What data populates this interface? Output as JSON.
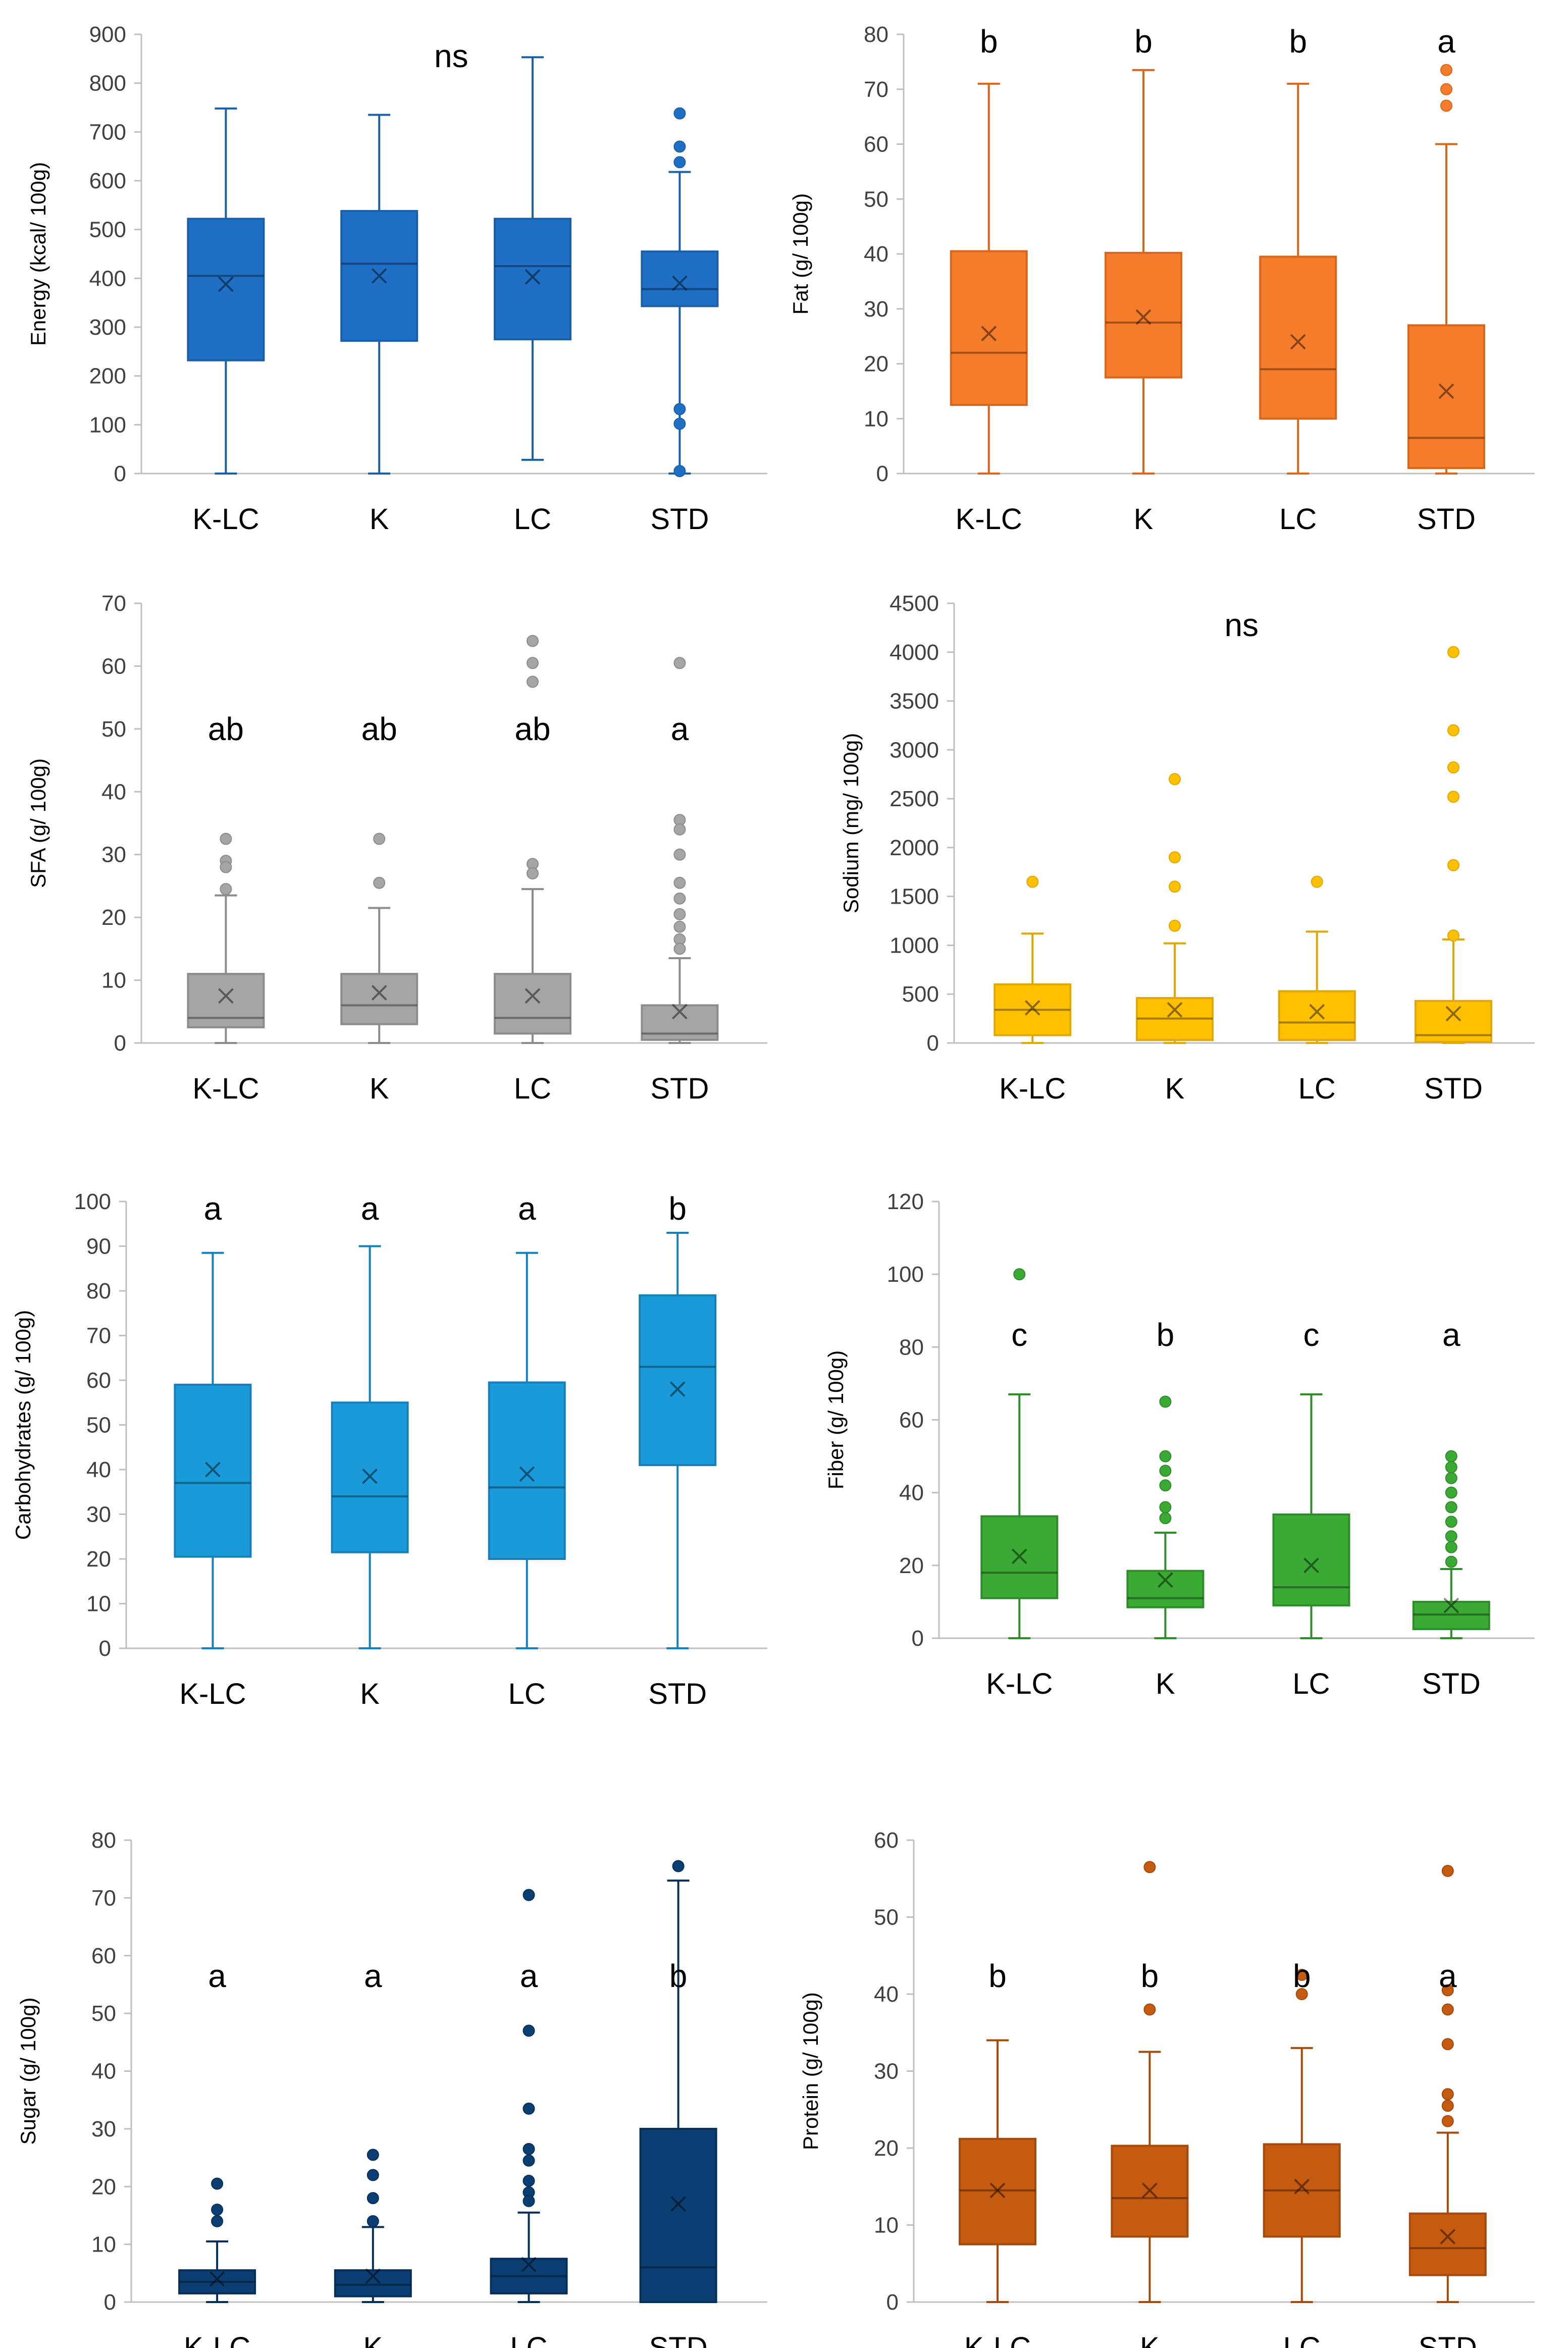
{
  "chart_data": [
    {
      "id": "energy",
      "type": "box",
      "ylabel": "Energy (kcal/ 100g)",
      "ylim": [
        0,
        900
      ],
      "yticks": [
        0,
        100,
        200,
        300,
        400,
        500,
        600,
        700,
        800,
        900
      ],
      "color": "#1f6fc5",
      "stroke": "#1b5fa8",
      "groups": [
        {
          "category": "K-LC",
          "min": 0,
          "q1": 232,
          "median": 405,
          "q3": 522,
          "max": 748,
          "mean": 388,
          "outliers": [],
          "letter": ""
        },
        {
          "category": "K",
          "min": 0,
          "q1": 272,
          "median": 430,
          "q3": 538,
          "max": 735,
          "mean": 405,
          "outliers": [],
          "letter": ""
        },
        {
          "category": "LC",
          "min": 28,
          "q1": 275,
          "median": 425,
          "q3": 522,
          "max": 853,
          "mean": 403,
          "outliers": [],
          "letter": ""
        },
        {
          "category": "STD",
          "min": 0,
          "q1": 343,
          "median": 378,
          "q3": 455,
          "max": 618,
          "mean": 390,
          "outliers": [
            738,
            670,
            638,
            132,
            102,
            5
          ],
          "letter": ""
        }
      ],
      "annotation": "ns"
    },
    {
      "id": "fat",
      "type": "box",
      "ylabel": "Fat (g/ 100g)",
      "ylim": [
        0,
        80
      ],
      "yticks": [
        0,
        10,
        20,
        30,
        40,
        50,
        60,
        70,
        80
      ],
      "color": "#f57c2a",
      "stroke": "#d9661a",
      "groups": [
        {
          "category": "K-LC",
          "min": 0,
          "q1": 12.5,
          "median": 22,
          "q3": 40.5,
          "max": 71,
          "mean": 25.5,
          "outliers": [],
          "letter": "b"
        },
        {
          "category": "K",
          "min": 0,
          "q1": 17.5,
          "median": 27.5,
          "q3": 40.2,
          "max": 73.5,
          "mean": 28.5,
          "outliers": [],
          "letter": "b"
        },
        {
          "category": "LC",
          "min": 0,
          "q1": 10,
          "median": 19,
          "q3": 39.5,
          "max": 71,
          "mean": 24,
          "outliers": [],
          "letter": "b"
        },
        {
          "category": "STD",
          "min": 0,
          "q1": 1,
          "median": 6.5,
          "q3": 27,
          "max": 60,
          "mean": 15,
          "outliers": [
            73.5,
            70,
            67
          ],
          "letter": "a"
        }
      ],
      "annotation": ""
    },
    {
      "id": "sfa",
      "type": "box",
      "ylabel": "SFA (g/ 100g)",
      "ylim": [
        0,
        70
      ],
      "yticks": [
        0,
        10,
        20,
        30,
        40,
        50,
        60,
        70
      ],
      "color": "#a5a5a5",
      "stroke": "#8c8c8c",
      "groups": [
        {
          "category": "K-LC",
          "min": 0,
          "q1": 2.5,
          "median": 4,
          "q3": 11,
          "max": 23.5,
          "mean": 7.5,
          "outliers": [
            32.5,
            29,
            28,
            24.5
          ],
          "letter": "ab"
        },
        {
          "category": "K",
          "min": 0,
          "q1": 3,
          "median": 6,
          "q3": 11,
          "max": 21.5,
          "mean": 8,
          "outliers": [
            32.5,
            25.5
          ],
          "letter": "ab"
        },
        {
          "category": "LC",
          "min": 0,
          "q1": 1.5,
          "median": 4,
          "q3": 11,
          "max": 24.5,
          "mean": 7.5,
          "outliers": [
            64,
            60.5,
            57.5,
            28.5,
            27
          ],
          "letter": "ab"
        },
        {
          "category": "STD",
          "min": 0,
          "q1": 0.5,
          "median": 1.5,
          "q3": 6,
          "max": 13.5,
          "mean": 5,
          "outliers": [
            60.5,
            35.5,
            34,
            30,
            25.5,
            23,
            20.5,
            18.5,
            16.5,
            15
          ],
          "letter": "a"
        }
      ],
      "annotation": ""
    },
    {
      "id": "sodium",
      "type": "box",
      "ylabel": "Sodium (mg/ 100g)",
      "ylim": [
        0,
        4500
      ],
      "yticks": [
        0,
        500,
        1000,
        1500,
        2000,
        2500,
        3000,
        3500,
        4000,
        4500
      ],
      "color": "#ffc000",
      "stroke": "#e0a800",
      "groups": [
        {
          "category": "K-LC",
          "min": 0,
          "q1": 80,
          "median": 340,
          "q3": 600,
          "max": 1120,
          "mean": 360,
          "outliers": [
            1650
          ],
          "letter": ""
        },
        {
          "category": "K",
          "min": 0,
          "q1": 30,
          "median": 250,
          "q3": 460,
          "max": 1020,
          "mean": 340,
          "outliers": [
            2700,
            1900,
            1600,
            1200
          ],
          "letter": ""
        },
        {
          "category": "LC",
          "min": 0,
          "q1": 30,
          "median": 210,
          "q3": 530,
          "max": 1140,
          "mean": 320,
          "outliers": [
            1650
          ],
          "letter": ""
        },
        {
          "category": "STD",
          "min": 0,
          "q1": 10,
          "median": 80,
          "q3": 430,
          "max": 1060,
          "mean": 300,
          "outliers": [
            4000,
            3200,
            2820,
            2520,
            1820,
            1100
          ],
          "letter": ""
        }
      ],
      "annotation": "ns"
    },
    {
      "id": "carbohydrates",
      "type": "box",
      "ylabel": "Carbohydrates (g/ 100g)",
      "ylim": [
        0,
        100
      ],
      "yticks": [
        0,
        10,
        20,
        30,
        40,
        50,
        60,
        70,
        80,
        90,
        100
      ],
      "color": "#1a9ad9",
      "stroke": "#1780b8",
      "groups": [
        {
          "category": "K-LC",
          "min": 0,
          "q1": 20.5,
          "median": 37,
          "q3": 59,
          "max": 88.5,
          "mean": 40,
          "outliers": [],
          "letter": "a"
        },
        {
          "category": "K",
          "min": 0,
          "q1": 21.5,
          "median": 34,
          "q3": 55,
          "max": 90,
          "mean": 38.5,
          "outliers": [],
          "letter": "a"
        },
        {
          "category": "LC",
          "min": 0,
          "q1": 20,
          "median": 36,
          "q3": 59.5,
          "max": 88.5,
          "mean": 39,
          "outliers": [],
          "letter": "a"
        },
        {
          "category": "STD",
          "min": 0,
          "q1": 41,
          "median": 63,
          "q3": 79,
          "max": 93,
          "mean": 58,
          "outliers": [],
          "letter": "b"
        }
      ],
      "annotation": ""
    },
    {
      "id": "fiber",
      "type": "box",
      "ylabel": "Fiber (g/ 100g)",
      "ylim": [
        0,
        120
      ],
      "yticks": [
        0,
        20,
        40,
        60,
        80,
        100,
        120
      ],
      "color": "#3aaa35",
      "stroke": "#2e8c2a",
      "groups": [
        {
          "category": "K-LC",
          "min": 0,
          "q1": 11,
          "median": 18,
          "q3": 33.5,
          "max": 67,
          "mean": 22.5,
          "outliers": [
            100
          ],
          "letter": "c"
        },
        {
          "category": "K",
          "min": 0,
          "q1": 8.5,
          "median": 11,
          "q3": 18.5,
          "max": 29,
          "mean": 16,
          "outliers": [
            65,
            50,
            46,
            42,
            36,
            33
          ],
          "letter": "b"
        },
        {
          "category": "LC",
          "min": 0,
          "q1": 9,
          "median": 14,
          "q3": 34,
          "max": 67,
          "mean": 20,
          "outliers": [],
          "letter": "c"
        },
        {
          "category": "STD",
          "min": 0,
          "q1": 2.5,
          "median": 6.5,
          "q3": 10,
          "max": 19,
          "mean": 9,
          "outliers": [
            50,
            47,
            44,
            40,
            36,
            32,
            28,
            25,
            21
          ],
          "letter": "a"
        }
      ],
      "annotation": ""
    },
    {
      "id": "sugar",
      "type": "box",
      "ylabel": "Sugar (g/ 100g)",
      "ylim": [
        0,
        80
      ],
      "yticks": [
        0,
        10,
        20,
        30,
        40,
        50,
        60,
        70,
        80
      ],
      "color": "#0b3f73",
      "stroke": "#082f57",
      "groups": [
        {
          "category": "K-LC",
          "min": 0,
          "q1": 1.5,
          "median": 3.5,
          "q3": 5.5,
          "max": 10.5,
          "mean": 4,
          "outliers": [
            20.5,
            16,
            14
          ],
          "letter": "a"
        },
        {
          "category": "K",
          "min": 0,
          "q1": 1,
          "median": 3,
          "q3": 5.5,
          "max": 13,
          "mean": 4.5,
          "outliers": [
            25.5,
            22,
            18,
            14
          ],
          "letter": "a"
        },
        {
          "category": "LC",
          "min": 0,
          "q1": 1.5,
          "median": 4.5,
          "q3": 7.5,
          "max": 15.5,
          "mean": 6.5,
          "outliers": [
            70.5,
            47,
            33.5,
            26.5,
            24.5,
            21,
            19,
            17.5
          ],
          "letter": "a"
        },
        {
          "category": "STD",
          "min": 0,
          "q1": 0,
          "median": 6,
          "q3": 30,
          "max": 73,
          "mean": 17,
          "outliers": [
            75.5
          ],
          "letter": "b"
        }
      ],
      "annotation": ""
    },
    {
      "id": "protein",
      "type": "box",
      "ylabel": "Protein (g/ 100g)",
      "ylim": [
        0,
        60
      ],
      "yticks": [
        0,
        10,
        20,
        30,
        40,
        50,
        60
      ],
      "color": "#c55a11",
      "stroke": "#a44a0c",
      "groups": [
        {
          "category": "K-LC",
          "min": 0,
          "q1": 7.5,
          "median": 14.5,
          "q3": 21.2,
          "max": 34,
          "mean": 14.5,
          "outliers": [],
          "letter": "b"
        },
        {
          "category": "K",
          "min": 0,
          "q1": 8.5,
          "median": 13.5,
          "q3": 20.3,
          "max": 32.5,
          "mean": 14.5,
          "outliers": [
            56.5,
            38
          ],
          "letter": "b"
        },
        {
          "category": "LC",
          "min": 0,
          "q1": 8.5,
          "median": 14.5,
          "q3": 20.5,
          "max": 33,
          "mean": 15,
          "outliers": [
            42.5,
            40
          ],
          "letter": "b"
        },
        {
          "category": "STD",
          "min": 0,
          "q1": 3.5,
          "median": 7,
          "q3": 11.5,
          "max": 22,
          "mean": 8.5,
          "outliers": [
            56,
            40.5,
            38,
            33.5,
            27,
            25.5,
            23.5
          ],
          "letter": "a"
        }
      ],
      "annotation": ""
    }
  ]
}
